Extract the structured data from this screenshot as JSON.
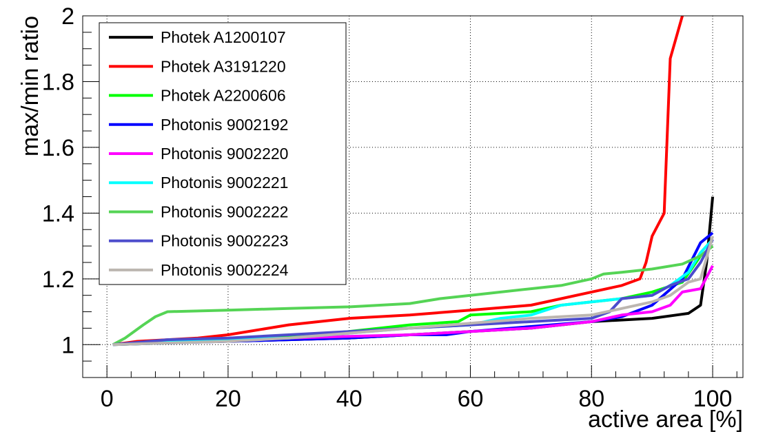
{
  "chart_data": {
    "type": "line",
    "xlabel": "active area [%]",
    "ylabel": "max/min ratio",
    "xlim": [
      -4,
      105
    ],
    "ylim": [
      0.9,
      2.0
    ],
    "xticks": [
      0,
      20,
      40,
      60,
      80,
      100
    ],
    "xtick_labels": [
      "0",
      "20",
      "40",
      "60",
      "80",
      "100"
    ],
    "yticks": [
      1.0,
      1.2,
      1.4,
      1.6,
      1.8,
      2.0
    ],
    "ytick_labels": [
      "1",
      "1.2",
      "1.4",
      "1.6",
      "1.8",
      "2"
    ],
    "grid": true,
    "legend_position": "top-left",
    "series": [
      {
        "name": "Photek A1200107",
        "color": "#000000",
        "points": [
          [
            1,
            1.0
          ],
          [
            5,
            1.005
          ],
          [
            20,
            1.01
          ],
          [
            40,
            1.02
          ],
          [
            55,
            1.035
          ],
          [
            70,
            1.05
          ],
          [
            80,
            1.07
          ],
          [
            90,
            1.08
          ],
          [
            94,
            1.09
          ],
          [
            96,
            1.095
          ],
          [
            98,
            1.12
          ],
          [
            99,
            1.25
          ],
          [
            100,
            1.45
          ]
        ]
      },
      {
        "name": "Photek A3191220",
        "color": "#ff0000",
        "points": [
          [
            1,
            1.0
          ],
          [
            5,
            1.01
          ],
          [
            15,
            1.02
          ],
          [
            20,
            1.03
          ],
          [
            30,
            1.06
          ],
          [
            40,
            1.08
          ],
          [
            50,
            1.09
          ],
          [
            60,
            1.105
          ],
          [
            70,
            1.12
          ],
          [
            75,
            1.14
          ],
          [
            80,
            1.16
          ],
          [
            85,
            1.18
          ],
          [
            88,
            1.2
          ],
          [
            89,
            1.25
          ],
          [
            90,
            1.33
          ],
          [
            92,
            1.4
          ],
          [
            93,
            1.87
          ],
          [
            95,
            2.0
          ]
        ]
      },
      {
        "name": "Photek A2200606",
        "color": "#00ff00",
        "points": [
          [
            1,
            1.0
          ],
          [
            10,
            1.005
          ],
          [
            20,
            1.015
          ],
          [
            30,
            1.025
          ],
          [
            40,
            1.04
          ],
          [
            50,
            1.06
          ],
          [
            58,
            1.07
          ],
          [
            60,
            1.09
          ],
          [
            70,
            1.1
          ],
          [
            75,
            1.12
          ],
          [
            80,
            1.13
          ],
          [
            85,
            1.14
          ],
          [
            90,
            1.16
          ],
          [
            95,
            1.19
          ],
          [
            98,
            1.27
          ],
          [
            100,
            1.3
          ]
        ]
      },
      {
        "name": "Photonis 9002192",
        "color": "#0000ff",
        "points": [
          [
            1,
            1.0
          ],
          [
            10,
            1.005
          ],
          [
            20,
            1.01
          ],
          [
            30,
            1.015
          ],
          [
            40,
            1.02
          ],
          [
            50,
            1.03
          ],
          [
            56,
            1.03
          ],
          [
            60,
            1.04
          ],
          [
            70,
            1.055
          ],
          [
            80,
            1.07
          ],
          [
            85,
            1.085
          ],
          [
            90,
            1.12
          ],
          [
            95,
            1.2
          ],
          [
            98,
            1.31
          ],
          [
            100,
            1.34
          ]
        ]
      },
      {
        "name": "Photonis 9002220",
        "color": "#ff00ff",
        "points": [
          [
            1,
            1.0
          ],
          [
            10,
            1.01
          ],
          [
            20,
            1.015
          ],
          [
            30,
            1.02
          ],
          [
            40,
            1.025
          ],
          [
            50,
            1.03
          ],
          [
            60,
            1.04
          ],
          [
            70,
            1.05
          ],
          [
            80,
            1.07
          ],
          [
            85,
            1.09
          ],
          [
            90,
            1.1
          ],
          [
            93,
            1.12
          ],
          [
            95,
            1.16
          ],
          [
            98,
            1.17
          ],
          [
            100,
            1.24
          ]
        ]
      },
      {
        "name": "Photonis 9002221",
        "color": "#00ffff",
        "points": [
          [
            1,
            1.0
          ],
          [
            10,
            1.01
          ],
          [
            20,
            1.015
          ],
          [
            30,
            1.02
          ],
          [
            40,
            1.035
          ],
          [
            50,
            1.05
          ],
          [
            60,
            1.06
          ],
          [
            65,
            1.08
          ],
          [
            70,
            1.09
          ],
          [
            75,
            1.12
          ],
          [
            80,
            1.13
          ],
          [
            85,
            1.14
          ],
          [
            90,
            1.15
          ],
          [
            93,
            1.18
          ],
          [
            96,
            1.22
          ],
          [
            98,
            1.28
          ],
          [
            100,
            1.32
          ]
        ]
      },
      {
        "name": "Photonis 9002222",
        "color": "#55d455",
        "points": [
          [
            1,
            1.0
          ],
          [
            3,
            1.02
          ],
          [
            6,
            1.06
          ],
          [
            8,
            1.085
          ],
          [
            10,
            1.1
          ],
          [
            20,
            1.105
          ],
          [
            30,
            1.11
          ],
          [
            40,
            1.115
          ],
          [
            50,
            1.125
          ],
          [
            55,
            1.14
          ],
          [
            60,
            1.15
          ],
          [
            70,
            1.17
          ],
          [
            75,
            1.18
          ],
          [
            80,
            1.2
          ],
          [
            82,
            1.215
          ],
          [
            85,
            1.22
          ],
          [
            90,
            1.23
          ],
          [
            95,
            1.245
          ],
          [
            98,
            1.27
          ],
          [
            100,
            1.3
          ]
        ]
      },
      {
        "name": "Photonis 9002223",
        "color": "#4c4ccc",
        "points": [
          [
            1,
            1.0
          ],
          [
            10,
            1.015
          ],
          [
            20,
            1.02
          ],
          [
            30,
            1.03
          ],
          [
            40,
            1.04
          ],
          [
            50,
            1.05
          ],
          [
            60,
            1.06
          ],
          [
            70,
            1.07
          ],
          [
            80,
            1.08
          ],
          [
            83,
            1.1
          ],
          [
            85,
            1.14
          ],
          [
            90,
            1.15
          ],
          [
            93,
            1.18
          ],
          [
            96,
            1.2
          ],
          [
            98,
            1.25
          ],
          [
            100,
            1.32
          ]
        ]
      },
      {
        "name": "Photonis 9002224",
        "color": "#bcb6b0",
        "points": [
          [
            1,
            1.0
          ],
          [
            10,
            1.005
          ],
          [
            20,
            1.01
          ],
          [
            30,
            1.02
          ],
          [
            40,
            1.035
          ],
          [
            50,
            1.05
          ],
          [
            60,
            1.065
          ],
          [
            70,
            1.08
          ],
          [
            80,
            1.09
          ],
          [
            85,
            1.11
          ],
          [
            90,
            1.13
          ],
          [
            93,
            1.15
          ],
          [
            96,
            1.19
          ],
          [
            98,
            1.2
          ],
          [
            100,
            1.33
          ]
        ]
      }
    ]
  }
}
